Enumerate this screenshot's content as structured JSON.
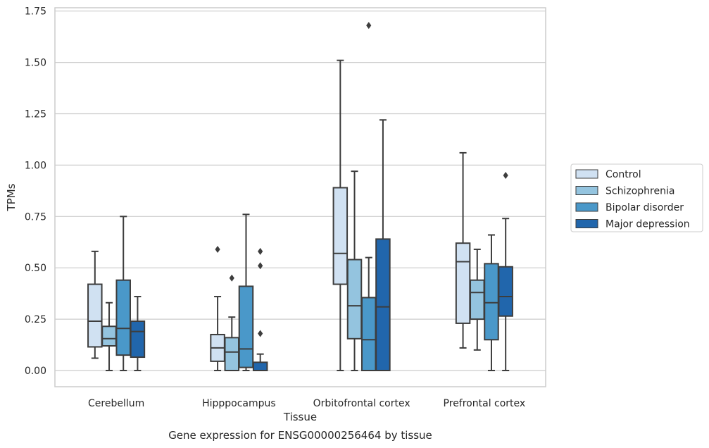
{
  "chart_data": {
    "type": "box",
    "title": "Gene expression for ENSG00000256464 by tissue",
    "xlabel": "Tissue",
    "ylabel": "TPMs",
    "ylim": [
      -0.08,
      1.76
    ],
    "yticks": [
      "0.00",
      "0.25",
      "0.50",
      "0.75",
      "1.00",
      "1.25",
      "1.50",
      "1.75"
    ],
    "grid": true,
    "legend_position": "right",
    "categories": [
      "Cerebellum",
      "Hipppocampus",
      "Orbitofrontal cortex",
      "Prefrontal cortex"
    ],
    "series": [
      {
        "name": "Control",
        "color": "#d0e1f2",
        "boxes": [
          {
            "whisker_low": 0.06,
            "q1": 0.115,
            "median": 0.24,
            "q3": 0.42,
            "whisker_high": 0.58,
            "outliers": []
          },
          {
            "whisker_low": 0.0,
            "q1": 0.045,
            "median": 0.11,
            "q3": 0.175,
            "whisker_high": 0.36,
            "outliers": [
              0.59
            ]
          },
          {
            "whisker_low": 0.0,
            "q1": 0.42,
            "median": 0.57,
            "q3": 0.89,
            "whisker_high": 1.51,
            "outliers": []
          },
          {
            "whisker_low": 0.11,
            "q1": 0.23,
            "median": 0.53,
            "q3": 0.62,
            "whisker_high": 1.06,
            "outliers": []
          }
        ]
      },
      {
        "name": "Schizophrenia",
        "color": "#94c4df",
        "boxes": [
          {
            "whisker_low": 0.0,
            "q1": 0.12,
            "median": 0.155,
            "q3": 0.215,
            "whisker_high": 0.33,
            "outliers": []
          },
          {
            "whisker_low": 0.0,
            "q1": 0.0,
            "median": 0.09,
            "q3": 0.16,
            "whisker_high": 0.26,
            "outliers": [
              0.45
            ]
          },
          {
            "whisker_low": 0.0,
            "q1": 0.155,
            "median": 0.315,
            "q3": 0.54,
            "whisker_high": 0.97,
            "outliers": []
          },
          {
            "whisker_low": 0.1,
            "q1": 0.25,
            "median": 0.38,
            "q3": 0.44,
            "whisker_high": 0.59,
            "outliers": []
          }
        ]
      },
      {
        "name": "Bipolar disorder",
        "color": "#4a98c9",
        "boxes": [
          {
            "whisker_low": 0.0,
            "q1": 0.075,
            "median": 0.205,
            "q3": 0.44,
            "whisker_high": 0.75,
            "outliers": []
          },
          {
            "whisker_low": 0.0,
            "q1": 0.015,
            "median": 0.105,
            "q3": 0.41,
            "whisker_high": 0.76,
            "outliers": []
          },
          {
            "whisker_low": 0.0,
            "q1": 0.0,
            "median": 0.15,
            "q3": 0.355,
            "whisker_high": 0.55,
            "outliers": [
              1.68
            ]
          },
          {
            "whisker_low": 0.0,
            "q1": 0.15,
            "median": 0.33,
            "q3": 0.52,
            "whisker_high": 0.66,
            "outliers": []
          }
        ]
      },
      {
        "name": "Major depression",
        "color": "#2166ac",
        "boxes": [
          {
            "whisker_low": 0.0,
            "q1": 0.065,
            "median": 0.19,
            "q3": 0.24,
            "whisker_high": 0.36,
            "outliers": []
          },
          {
            "whisker_low": 0.0,
            "q1": 0.0,
            "median": 0.0,
            "q3": 0.04,
            "whisker_high": 0.08,
            "outliers": [
              0.58,
              0.51,
              0.18
            ]
          },
          {
            "whisker_low": 0.0,
            "q1": 0.0,
            "median": 0.31,
            "q3": 0.64,
            "whisker_high": 1.22,
            "outliers": []
          },
          {
            "whisker_low": 0.0,
            "q1": 0.265,
            "median": 0.36,
            "q3": 0.505,
            "whisker_high": 0.74,
            "outliers": [
              0.95
            ]
          }
        ]
      }
    ]
  }
}
